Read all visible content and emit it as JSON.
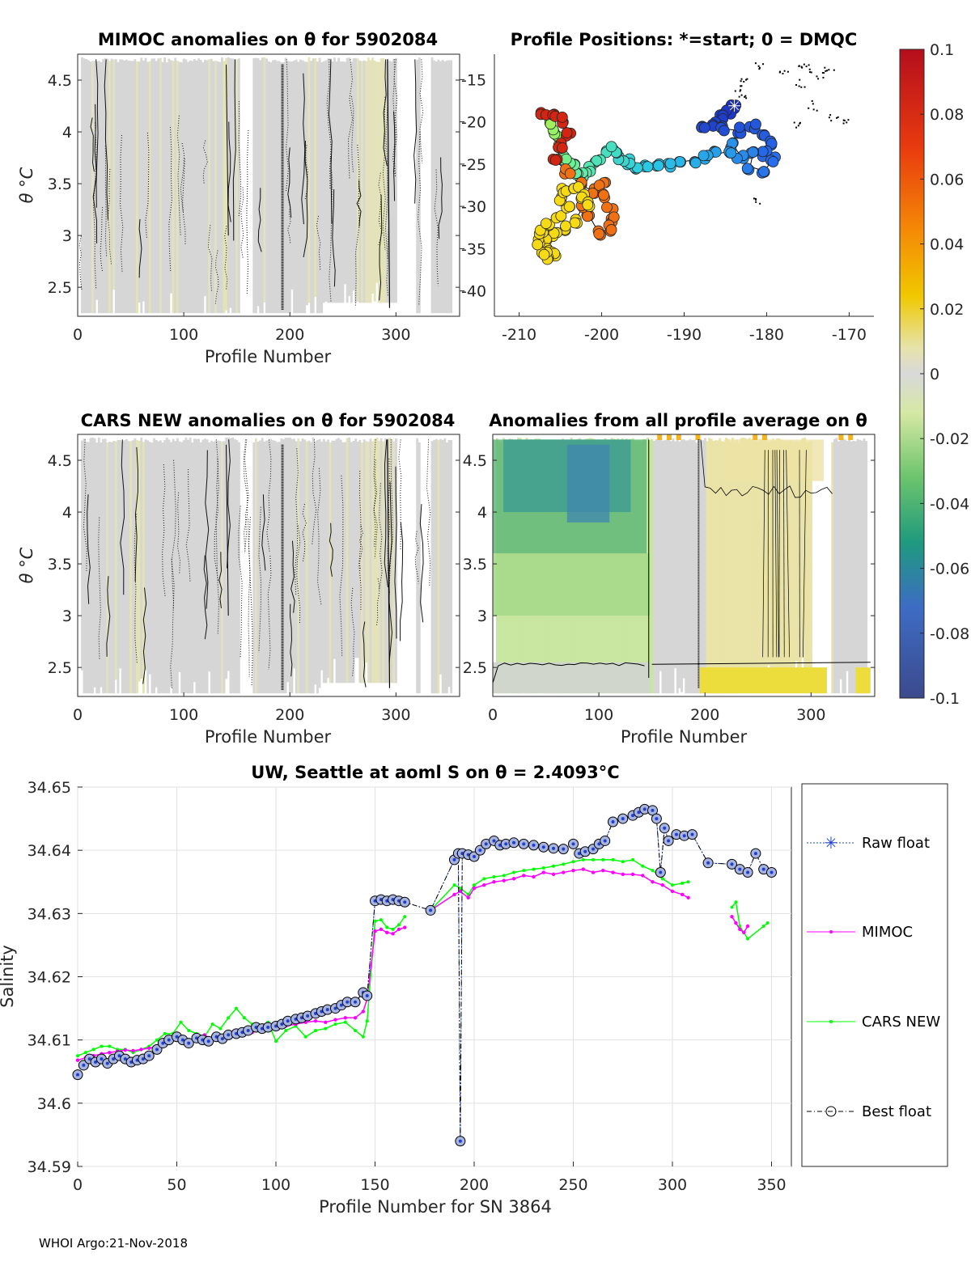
{
  "footer": "WHOI Argo:21-Nov-2018",
  "chart_data": [
    {
      "id": "mimoc",
      "type": "heatmap",
      "title": "MIMOC anomalies on θ  for 5902084",
      "xlabel": "Profile Number",
      "ylabel": "θ °C",
      "xlim": [
        0,
        360
      ],
      "ylim": [
        2.22,
        4.75
      ],
      "xticks": [
        "0",
        "100",
        "200",
        "300"
      ],
      "yticks": [
        "4.5",
        "4",
        "3.5",
        "3",
        "2.5"
      ],
      "right_ticks": [
        "-15",
        "-20",
        "-25",
        "-30",
        "-35",
        "-40"
      ]
    },
    {
      "id": "positions",
      "type": "scatter",
      "title": "Profile Positions: *=start; 0 = DMQC",
      "xlim": [
        -213,
        -167
      ],
      "ylim": [
        -43,
        -12
      ],
      "xticks": [
        "-210",
        "-200",
        "-190",
        "-180",
        "-170"
      ],
      "track": [
        [
          -183.9,
          -18.1
        ],
        [
          -184.6,
          -18.7
        ],
        [
          -185.4,
          -19.4
        ],
        [
          -186.5,
          -20.2
        ],
        [
          -187.5,
          -20.4
        ],
        [
          -185.5,
          -20.8
        ],
        [
          -183.5,
          -21.0
        ],
        [
          -181.7,
          -20.6
        ],
        [
          -180.2,
          -21.3
        ],
        [
          -179.4,
          -22.6
        ],
        [
          -180.1,
          -23.8
        ],
        [
          -179.1,
          -24.5
        ],
        [
          -180.4,
          -25.8
        ],
        [
          -182.0,
          -25.3
        ],
        [
          -181.6,
          -23.5
        ],
        [
          -183.2,
          -24.0
        ],
        [
          -184.0,
          -22.8
        ],
        [
          -184.6,
          -23.5
        ],
        [
          -186.0,
          -23.8
        ],
        [
          -187.4,
          -24.1
        ],
        [
          -188.6,
          -24.5
        ],
        [
          -190.2,
          -24.7
        ],
        [
          -191.8,
          -25.0
        ],
        [
          -193.2,
          -25.1
        ],
        [
          -194.7,
          -25.3
        ],
        [
          -196.0,
          -25.6
        ],
        [
          -196.6,
          -24.7
        ],
        [
          -197.6,
          -24.3
        ],
        [
          -198.2,
          -23.5
        ],
        [
          -199.2,
          -23.3
        ],
        [
          -200.4,
          -24.4
        ],
        [
          -201.2,
          -25.6
        ],
        [
          -202.0,
          -26.3
        ],
        [
          -203.3,
          -26.3
        ],
        [
          -203.6,
          -25.1
        ],
        [
          -204.4,
          -24.3
        ],
        [
          -204.9,
          -23.0
        ],
        [
          -205.3,
          -22.0
        ],
        [
          -205.9,
          -21.3
        ],
        [
          -206.3,
          -20.2
        ],
        [
          -207.0,
          -19.2
        ],
        [
          -206.0,
          -19.0
        ],
        [
          -204.6,
          -19.8
        ],
        [
          -204.0,
          -21.3
        ],
        [
          -204.9,
          -22.9
        ],
        [
          -205.5,
          -24.7
        ],
        [
          -204.1,
          -25.9
        ],
        [
          -202.7,
          -27.4
        ],
        [
          -201.2,
          -28.1
        ],
        [
          -199.9,
          -27.3
        ],
        [
          -199.6,
          -28.8
        ],
        [
          -199.0,
          -30.3
        ],
        [
          -198.6,
          -31.6
        ],
        [
          -199.2,
          -32.6
        ],
        [
          -200.3,
          -33.2
        ],
        [
          -201.4,
          -31.3
        ],
        [
          -202.2,
          -29.8
        ],
        [
          -203.2,
          -31.8
        ],
        [
          -204.1,
          -32.7
        ],
        [
          -205.7,
          -33.2
        ],
        [
          -207.0,
          -33.7
        ],
        [
          -206.4,
          -35.1
        ],
        [
          -205.9,
          -35.6
        ],
        [
          -206.2,
          -36.2
        ],
        [
          -206.9,
          -35.5
        ],
        [
          -207.8,
          -34.2
        ],
        [
          -207.3,
          -33.0
        ],
        [
          -206.4,
          -32.1
        ],
        [
          -205.3,
          -31.3
        ],
        [
          -204.2,
          -30.2
        ],
        [
          -205.1,
          -29.1
        ],
        [
          -204.5,
          -28.0
        ],
        [
          -203.1,
          -27.9
        ],
        [
          -202.1,
          -28.9
        ],
        [
          -201.3,
          -29.7
        ]
      ],
      "dmqc_marks": [
        [
          -181,
          -13.5
        ],
        [
          -178,
          -14
        ],
        [
          -176,
          -15.5
        ],
        [
          -183,
          -15
        ],
        [
          -172.5,
          -14
        ],
        [
          -172,
          -19.5
        ],
        [
          -176.5,
          -20.5
        ],
        [
          -170.5,
          -20.2
        ],
        [
          -174.5,
          -18
        ],
        [
          -181.2,
          -29.5
        ],
        [
          -183.4,
          -16.1
        ],
        [
          -182.9,
          -16.6
        ],
        [
          -175.8,
          -13.2
        ],
        [
          -174.9,
          -13.7
        ],
        [
          -173.7,
          -14.3
        ]
      ]
    },
    {
      "id": "colorbar",
      "type": "heatmap",
      "range": [
        -0.1,
        0.1
      ],
      "ticks": [
        "0.1",
        "0.08",
        "0.06",
        "0.04",
        "0.02",
        "0",
        "-0.02",
        "-0.04",
        "-0.06",
        "-0.08",
        "-0.1"
      ]
    },
    {
      "id": "cars",
      "type": "heatmap",
      "title": "CARS NEW anomalies on θ for 5902084",
      "xlabel": "Profile Number",
      "ylabel": "θ °C",
      "xlim": [
        0,
        360
      ],
      "ylim": [
        2.22,
        4.75
      ],
      "xticks": [
        "0",
        "100",
        "200",
        "300"
      ],
      "yticks": [
        "4.5",
        "4",
        "3.5",
        "3",
        "2.5"
      ]
    },
    {
      "id": "allavg",
      "type": "heatmap",
      "title": "Anomalies from all profile average on θ",
      "xlabel": "Profile Number",
      "xlim": [
        0,
        360
      ],
      "ylim": [
        2.22,
        4.75
      ],
      "xticks": [
        "0",
        "100",
        "200",
        "300"
      ],
      "yticks": [
        "4.5",
        "4",
        "3.5",
        "3",
        "2.5"
      ]
    },
    {
      "id": "salinity",
      "type": "line",
      "title": "UW, Seattle at aoml S on θ = 2.4093°C",
      "xlabel": "Profile Number for SN 3864",
      "ylabel": "Salinity",
      "xlim": [
        0,
        360
      ],
      "ylim": [
        34.59,
        34.65
      ],
      "xticks": [
        "0",
        "50",
        "100",
        "150",
        "200",
        "250",
        "300",
        "350"
      ],
      "yticks": [
        "34.65",
        "34.64",
        "34.63",
        "34.62",
        "34.61",
        "34.6",
        "34.59"
      ],
      "legend": [
        "Raw float",
        "MIMOC",
        "CARS NEW",
        "Best float"
      ],
      "series": [
        {
          "name": "Best float",
          "color": "#000000",
          "x": [
            0,
            3,
            6,
            9,
            12,
            15,
            18,
            21,
            24,
            27,
            30,
            33,
            36,
            40,
            43,
            46,
            50,
            53,
            56,
            60,
            63,
            66,
            70,
            73,
            76,
            80,
            83,
            86,
            90,
            93,
            96,
            100,
            103,
            106,
            110,
            113,
            116,
            120,
            123,
            126,
            130,
            133,
            136,
            140,
            144,
            146,
            150,
            153,
            156,
            159,
            162,
            165,
            178,
            190,
            192,
            193,
            194,
            197,
            200,
            203,
            206,
            210,
            213,
            216,
            220,
            225,
            230,
            235,
            240,
            245,
            250,
            253,
            256,
            260,
            263,
            266,
            270,
            275,
            280,
            283,
            286,
            290,
            292,
            294,
            296,
            298,
            302,
            306,
            310,
            318,
            330,
            334,
            338,
            342,
            346,
            350
          ],
          "y": [
            34.6045,
            34.606,
            34.607,
            34.6065,
            34.607,
            34.6063,
            34.607,
            34.6075,
            34.607,
            34.6065,
            34.6068,
            34.607,
            34.6075,
            34.6085,
            34.6095,
            34.61,
            34.6105,
            34.61,
            34.6095,
            34.6103,
            34.61,
            34.6098,
            34.6105,
            34.6102,
            34.6108,
            34.611,
            34.6112,
            34.6115,
            34.612,
            34.6118,
            34.612,
            34.6122,
            34.6125,
            34.613,
            34.6133,
            34.6135,
            34.6138,
            34.6142,
            34.6145,
            34.6148,
            34.615,
            34.6155,
            34.616,
            34.616,
            34.6175,
            34.617,
            34.632,
            34.6322,
            34.632,
            34.6322,
            34.632,
            34.6318,
            34.6305,
            34.6385,
            34.6395,
            34.594,
            34.6395,
            34.6393,
            34.639,
            34.64,
            34.641,
            34.6415,
            34.6408,
            34.641,
            34.6412,
            34.641,
            34.6408,
            34.6405,
            34.6403,
            34.6402,
            34.641,
            34.6395,
            34.6398,
            34.6402,
            34.641,
            34.6415,
            34.6445,
            34.645,
            34.6455,
            34.646,
            34.6465,
            34.6463,
            34.645,
            34.6365,
            34.6435,
            34.6415,
            34.6425,
            34.6423,
            34.6425,
            34.638,
            34.6378,
            34.637,
            34.6365,
            34.6395,
            34.637,
            34.6365
          ]
        },
        {
          "name": "MIMOC",
          "color": "#ff00ff",
          "x": [
            0,
            4,
            8,
            12,
            16,
            20,
            24,
            28,
            32,
            36,
            40,
            44,
            48,
            52,
            56,
            60,
            64,
            68,
            72,
            76,
            80,
            84,
            88,
            92,
            96,
            100,
            105,
            110,
            115,
            120,
            125,
            130,
            135,
            140,
            144,
            146,
            150,
            153,
            156,
            159,
            162,
            165,
            178,
            190,
            193,
            197,
            200,
            205,
            210,
            215,
            220,
            225,
            230,
            235,
            240,
            245,
            250,
            255,
            260,
            265,
            270,
            275,
            280,
            285,
            290,
            295,
            300,
            305,
            308,
            330,
            332,
            334,
            336,
            338
          ],
          "y": [
            34.6068,
            34.6072,
            34.6075,
            34.6078,
            34.608,
            34.6082,
            34.6084,
            34.6083,
            34.6085,
            34.6087,
            34.609,
            34.6095,
            34.61,
            34.6102,
            34.6098,
            34.6105,
            34.6108,
            34.61,
            34.6102,
            34.6108,
            34.611,
            34.6108,
            34.6112,
            34.6115,
            34.6115,
            34.6118,
            34.6122,
            34.6125,
            34.6128,
            34.613,
            34.6128,
            34.6132,
            34.6135,
            34.6135,
            34.6145,
            34.6165,
            34.6272,
            34.6275,
            34.627,
            34.6268,
            34.6275,
            34.6278,
            34.6305,
            34.633,
            34.6335,
            34.6325,
            34.634,
            34.6345,
            34.635,
            34.6352,
            34.6355,
            34.636,
            34.6358,
            34.6365,
            34.6362,
            34.6365,
            34.6368,
            34.637,
            34.6365,
            34.6368,
            34.6365,
            34.6362,
            34.6362,
            34.636,
            34.635,
            34.6345,
            34.6335,
            34.633,
            34.6325,
            34.6295,
            34.6285,
            34.6275,
            34.627,
            34.628
          ]
        },
        {
          "name": "CARS NEW",
          "color": "#00ff00",
          "x": [
            0,
            4,
            8,
            12,
            16,
            20,
            24,
            28,
            32,
            36,
            40,
            44,
            48,
            52,
            56,
            60,
            64,
            68,
            72,
            76,
            80,
            84,
            88,
            92,
            96,
            100,
            105,
            110,
            115,
            120,
            125,
            130,
            135,
            140,
            144,
            146,
            150,
            153,
            156,
            159,
            162,
            165,
            178,
            190,
            193,
            197,
            200,
            205,
            210,
            215,
            220,
            225,
            230,
            235,
            240,
            245,
            250,
            255,
            260,
            265,
            270,
            275,
            280,
            285,
            290,
            295,
            300,
            305,
            308,
            330,
            332,
            334,
            336,
            338,
            346,
            348
          ],
          "y": [
            34.6075,
            34.608,
            34.6085,
            34.609,
            34.609,
            34.6085,
            34.6085,
            34.608,
            34.6085,
            34.609,
            34.61,
            34.611,
            34.611,
            34.6128,
            34.6115,
            34.611,
            34.6105,
            34.6125,
            34.6118,
            34.6135,
            34.615,
            34.6135,
            34.6125,
            34.6118,
            34.6128,
            34.6098,
            34.6115,
            34.6122,
            34.6105,
            34.6115,
            34.6118,
            34.6125,
            34.6128,
            34.6115,
            34.6105,
            34.613,
            34.6288,
            34.629,
            34.6278,
            34.6275,
            34.6282,
            34.6295,
            34.6305,
            34.6345,
            34.634,
            34.633,
            34.6345,
            34.6355,
            34.6358,
            34.636,
            34.6365,
            34.6368,
            34.637,
            34.6372,
            34.6375,
            34.6378,
            34.6382,
            34.6385,
            34.6385,
            34.6385,
            34.6385,
            34.6382,
            34.6385,
            34.6375,
            34.6368,
            34.6355,
            34.6345,
            34.6348,
            34.635,
            34.631,
            34.6318,
            34.628,
            34.627,
            34.626,
            34.628,
            34.6285
          ]
        }
      ]
    }
  ]
}
